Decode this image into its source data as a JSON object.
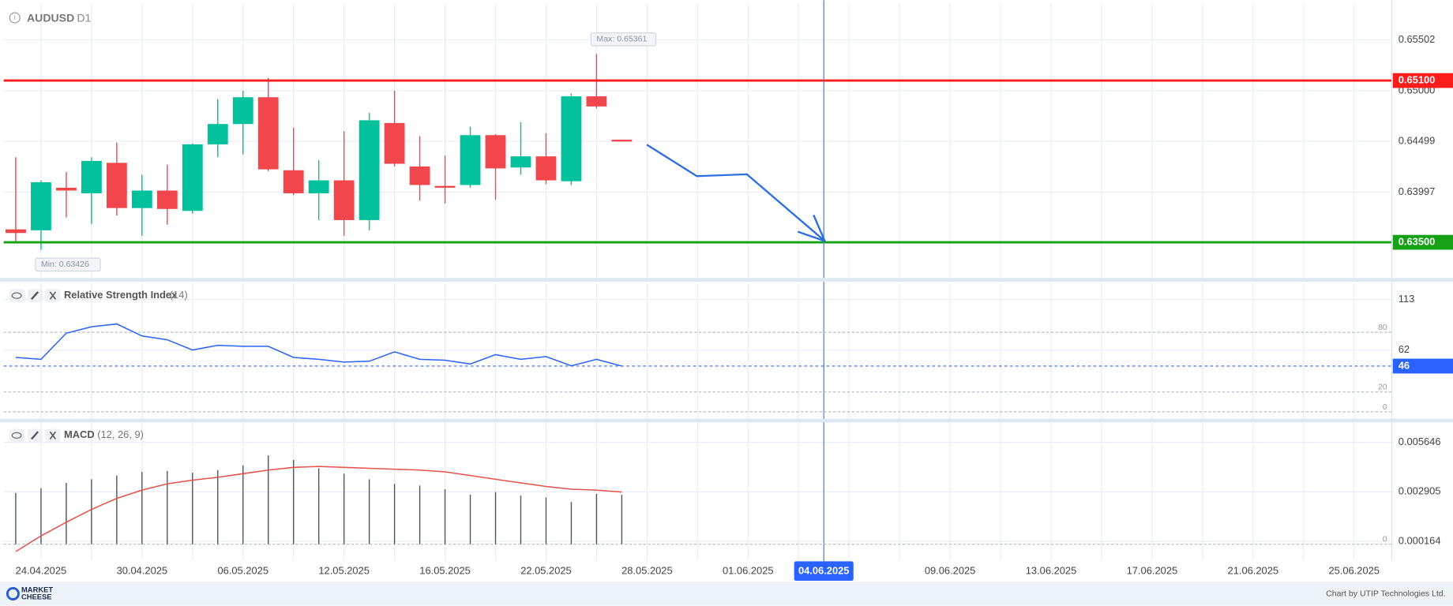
{
  "chart_data": [
    {
      "type": "candlestick",
      "title": "AUDUSD",
      "subtitle": "D1",
      "categories": [
        null,
        "24.04.2025",
        null,
        null,
        null,
        "30.04.2025",
        null,
        null,
        null,
        "06.05.2025",
        null,
        null,
        null,
        "12.05.2025",
        null,
        null,
        null,
        "16.05.2025",
        null,
        null,
        null,
        "22.05.2025",
        null,
        null,
        null,
        "28.05.2025",
        null,
        null,
        null,
        "01.06.2025",
        null,
        null,
        "04.06.2025",
        null,
        null,
        null,
        null,
        "09.06.2025",
        null,
        null,
        null,
        "13.06.2025",
        null,
        null,
        null,
        "17.06.2025",
        null,
        null,
        null,
        "21.06.2025",
        null,
        null,
        null,
        "25.06.2025",
        null
      ],
      "open": [
        0.63628,
        0.63619,
        0.6404,
        0.63985,
        0.64286,
        0.63839,
        0.64012,
        0.63811,
        0.64469,
        0.6467,
        0.64935,
        0.64213,
        0.63985,
        0.64113,
        0.6372,
        0.6468,
        0.6425,
        0.64058,
        0.64067,
        0.6456,
        0.6424,
        0.6435,
        0.64104,
        0.64944,
        0.64515,
        null,
        null,
        null,
        null,
        null,
        null,
        null,
        null,
        null,
        null,
        null,
        null,
        null,
        null,
        null,
        null,
        null,
        null,
        null,
        null,
        null,
        null,
        null,
        null,
        null,
        null,
        null,
        null,
        null,
        null
      ],
      "high": [
        0.64341,
        0.64113,
        0.64195,
        0.64341,
        0.64487,
        0.64168,
        0.64268,
        0.64478,
        0.64917,
        0.64999,
        0.65127,
        0.64634,
        0.64314,
        0.64597,
        0.6478,
        0.64999,
        0.64551,
        0.64359,
        0.64643,
        0.6457,
        0.64689,
        0.64579,
        0.64972,
        0.65361,
        0.64515,
        null,
        null,
        null,
        null,
        null,
        null,
        null,
        null,
        null,
        null,
        null,
        null,
        null,
        null,
        null,
        null,
        null,
        null,
        null,
        null,
        null,
        null,
        null,
        null,
        null,
        null,
        null,
        null,
        null,
        null
      ],
      "low": [
        0.635,
        0.63426,
        0.63747,
        0.63683,
        0.63765,
        0.63564,
        0.63674,
        0.63784,
        0.64341,
        0.64369,
        0.64204,
        0.63967,
        0.6372,
        0.63564,
        0.63619,
        0.6425,
        0.63912,
        0.63884,
        0.6404,
        0.63921,
        0.64168,
        0.64076,
        0.64067,
        0.64826,
        0.64506,
        null,
        null,
        null,
        null,
        null,
        null,
        null,
        null,
        null,
        null,
        null,
        null,
        null,
        null,
        null,
        null,
        null,
        null,
        null,
        null,
        null,
        null,
        null,
        null,
        null,
        null,
        null,
        null,
        null,
        null
      ],
      "close": [
        0.63592,
        0.64094,
        0.64012,
        0.64305,
        0.63839,
        0.64012,
        0.6383,
        0.64469,
        0.6467,
        0.64935,
        0.64222,
        0.63985,
        0.64113,
        0.6372,
        0.64707,
        0.64277,
        0.64067,
        0.64049,
        0.6456,
        0.64231,
        0.6435,
        0.64113,
        0.64944,
        0.64844,
        0.64506,
        null,
        null,
        null,
        null,
        null,
        null,
        null,
        null,
        null,
        null,
        null,
        null,
        null,
        null,
        null,
        null,
        null,
        null,
        null,
        null,
        null,
        null,
        null,
        null,
        null,
        null,
        null,
        null,
        null,
        null
      ],
      "up_color": "#00c19c",
      "down_color": "#f1474c",
      "ylim": [
        0.63147,
        0.65858
      ],
      "yticks": [
        0.65502,
        {
          "value": 0.65,
          "label": "0.65000"
        },
        0.64499,
        0.63997
      ],
      "levels": [
        {
          "value": 0.651,
          "label": "0.65100",
          "color": "#ff1c1c"
        },
        {
          "value": 0.635,
          "label": "0.63500",
          "color": "#16a016"
        }
      ],
      "annotations": [
        {
          "text": "Max: 0.65361",
          "value": 0.65361
        },
        {
          "text": "Min: 0.63426",
          "value": 0.63426
        }
      ],
      "crosshair": "04.06.2025",
      "grid": true
    },
    {
      "type": "line",
      "title": "Relative Strength Index",
      "subtitle": "(14)",
      "values": [
        54.7,
        52.8,
        79.1,
        85.6,
        88.4,
        76.3,
        72.5,
        62.2,
        66.9,
        65.9,
        65.9,
        54.7,
        52.8,
        50.0,
        50.9,
        60.3,
        52.8,
        51.9,
        48.1,
        57.5,
        52.8,
        55.6,
        46.3,
        52.8,
        46,
        null,
        null,
        null,
        null,
        null,
        null,
        null,
        null,
        null,
        null,
        null,
        null,
        null,
        null,
        null,
        null,
        null,
        null,
        null,
        null,
        null,
        null,
        null,
        null,
        null,
        null,
        null,
        null,
        null,
        null
      ],
      "color": "#2962ff",
      "ylim": [
        -7,
        130
      ],
      "yticks": [
        113,
        62
      ],
      "levels": [
        80,
        20,
        0
      ],
      "current_value": 46
    },
    {
      "type": "macd",
      "title": "MACD",
      "subtitle": "(12, 26, 9)",
      "series": [
        {
          "type": "bar",
          "color": "#4a5568",
          "values": [
            0.00284,
            0.0031,
            0.0034,
            0.0036,
            0.00381,
            0.00401,
            0.00406,
            0.00396,
            0.00411,
            0.00437,
            0.00492,
            0.00467,
            0.00421,
            0.00391,
            0.0036,
            0.00335,
            0.00325,
            0.00305,
            0.00274,
            0.00289,
            0.00269,
            0.00259,
            0.00234,
            0.00279,
            0.00274,
            null,
            null,
            null,
            null,
            null,
            null,
            null,
            null,
            null,
            null,
            null,
            null,
            null,
            null,
            null,
            null,
            null,
            null,
            null,
            null,
            null,
            null,
            null,
            null,
            null,
            null,
            null,
            null,
            null,
            null
          ]
        },
        {
          "type": "line",
          "color": "#e5534b",
          "values": [
            -0.00041,
            0.00046,
            0.00122,
            0.00193,
            0.00254,
            0.003,
            0.00335,
            0.00355,
            0.00371,
            0.00391,
            0.00411,
            0.00426,
            0.00431,
            0.00426,
            0.00421,
            0.00416,
            0.00411,
            0.00401,
            0.00381,
            0.0036,
            0.0034,
            0.0032,
            0.00305,
            0.003,
            0.00289,
            null,
            null,
            null,
            null,
            null,
            null,
            null,
            null,
            null,
            null,
            null,
            null,
            null,
            null,
            null,
            null,
            null,
            null,
            null,
            null,
            null,
            null,
            null,
            null,
            null,
            null,
            null,
            null,
            null,
            null
          ]
        }
      ],
      "ylim": [
        -0.0009,
        0.0067
      ],
      "yticks": [
        0.005646,
        0.002905,
        0.000164
      ],
      "levels": [
        0
      ]
    }
  ],
  "footer": {
    "logo_top": "MARKET",
    "logo_bottom": "CHEESE",
    "credit": "Chart by UTIP Technologies Ltd."
  }
}
